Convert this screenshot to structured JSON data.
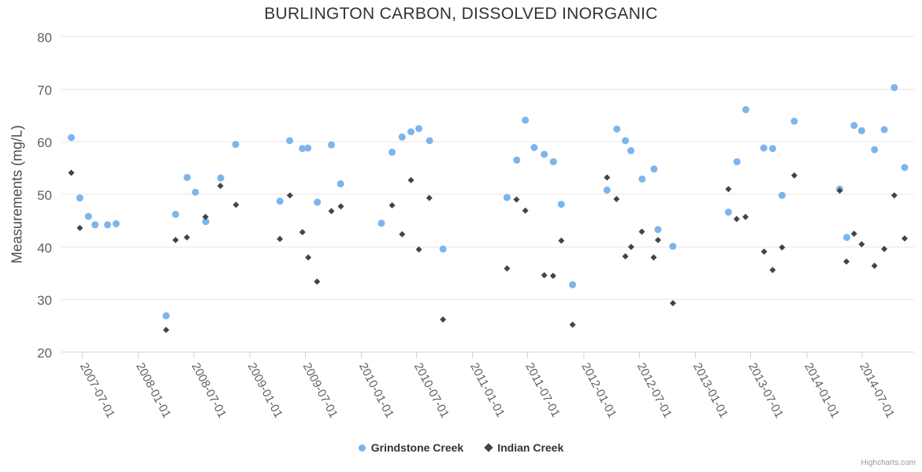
{
  "chart_data": {
    "type": "scatter",
    "title": "BURLINGTON CARBON, DISSOLVED INORGANIC",
    "xlabel": "",
    "ylabel": "Measurements (mg/L)",
    "ylim": [
      20,
      80
    ],
    "yticks": [
      20,
      30,
      40,
      50,
      60,
      70,
      80
    ],
    "xticks": [
      "2007-07-01",
      "2008-01-01",
      "2008-07-01",
      "2009-01-01",
      "2009-07-01",
      "2010-01-01",
      "2010-07-01",
      "2011-01-01",
      "2011-07-01",
      "2012-01-01",
      "2012-07-01",
      "2013-01-01",
      "2013-07-01",
      "2014-01-01",
      "2014-07-01"
    ],
    "x_range": [
      "2007-04-16",
      "2014-12-19"
    ],
    "grid": true,
    "legend_position": "bottom-center",
    "series": [
      {
        "name": "Grindstone Creek",
        "marker": "circle",
        "color": "#7cb5ec",
        "points": [
          [
            "2007-05-26",
            60.8
          ],
          [
            "2007-06-23",
            49.3
          ],
          [
            "2007-07-21",
            45.8
          ],
          [
            "2007-08-12",
            44.2
          ],
          [
            "2007-09-22",
            44.2
          ],
          [
            "2007-10-20",
            44.4
          ],
          [
            "2008-04-01",
            26.9
          ],
          [
            "2008-05-02",
            46.2
          ],
          [
            "2008-06-09",
            53.2
          ],
          [
            "2008-07-06",
            50.4
          ],
          [
            "2008-08-09",
            44.8
          ],
          [
            "2008-09-27",
            53.1
          ],
          [
            "2008-11-15",
            59.5
          ],
          [
            "2009-04-09",
            48.7
          ],
          [
            "2009-05-11",
            60.2
          ],
          [
            "2009-06-22",
            58.7
          ],
          [
            "2009-07-10",
            58.8
          ],
          [
            "2009-08-10",
            48.5
          ],
          [
            "2009-09-25",
            59.4
          ],
          [
            "2009-10-25",
            52.0
          ],
          [
            "2010-03-08",
            44.5
          ],
          [
            "2010-04-12",
            58.0
          ],
          [
            "2010-05-15",
            60.9
          ],
          [
            "2010-06-13",
            61.9
          ],
          [
            "2010-07-09",
            62.5
          ],
          [
            "2010-08-13",
            60.2
          ],
          [
            "2010-09-26",
            39.6
          ],
          [
            "2011-04-24",
            49.4
          ],
          [
            "2011-05-26",
            56.5
          ],
          [
            "2011-06-23",
            64.1
          ],
          [
            "2011-07-22",
            58.9
          ],
          [
            "2011-08-24",
            57.6
          ],
          [
            "2011-09-23",
            56.2
          ],
          [
            "2011-10-19",
            48.1
          ],
          [
            "2011-11-25",
            32.8
          ],
          [
            "2012-03-17",
            50.8
          ],
          [
            "2012-04-18",
            62.4
          ],
          [
            "2012-05-16",
            60.2
          ],
          [
            "2012-06-03",
            58.3
          ],
          [
            "2012-07-10",
            52.9
          ],
          [
            "2012-08-18",
            54.8
          ],
          [
            "2012-08-31",
            43.3
          ],
          [
            "2012-10-19",
            40.1
          ],
          [
            "2013-04-19",
            46.6
          ],
          [
            "2013-05-17",
            56.2
          ],
          [
            "2013-06-15",
            66.1
          ],
          [
            "2013-08-13",
            58.8
          ],
          [
            "2013-09-11",
            58.7
          ],
          [
            "2013-10-12",
            49.8
          ],
          [
            "2013-11-21",
            63.9
          ],
          [
            "2014-04-19",
            51.0
          ],
          [
            "2014-05-12",
            41.8
          ],
          [
            "2014-06-05",
            63.1
          ],
          [
            "2014-06-30",
            62.1
          ],
          [
            "2014-08-11",
            58.5
          ],
          [
            "2014-09-12",
            62.3
          ],
          [
            "2014-10-15",
            70.3
          ],
          [
            "2014-11-18",
            55.1
          ]
        ]
      },
      {
        "name": "Indian Creek",
        "marker": "diamond",
        "color": "#434348",
        "points": [
          [
            "2007-05-26",
            54.1
          ],
          [
            "2007-06-23",
            43.6
          ],
          [
            "2008-04-01",
            24.2
          ],
          [
            "2008-05-02",
            41.3
          ],
          [
            "2008-06-08",
            41.8
          ],
          [
            "2008-08-08",
            45.7
          ],
          [
            "2008-09-26",
            51.6
          ],
          [
            "2008-11-16",
            48.0
          ],
          [
            "2009-04-09",
            41.5
          ],
          [
            "2009-05-12",
            49.8
          ],
          [
            "2009-06-22",
            42.8
          ],
          [
            "2009-07-11",
            38.0
          ],
          [
            "2009-08-09",
            33.4
          ],
          [
            "2009-09-25",
            46.8
          ],
          [
            "2009-10-26",
            47.7
          ],
          [
            "2010-04-12",
            47.9
          ],
          [
            "2010-05-15",
            42.4
          ],
          [
            "2010-06-13",
            52.7
          ],
          [
            "2010-07-09",
            39.5
          ],
          [
            "2010-08-12",
            49.3
          ],
          [
            "2010-09-26",
            26.2
          ],
          [
            "2011-04-24",
            35.9
          ],
          [
            "2011-05-25",
            49.0
          ],
          [
            "2011-06-23",
            46.9
          ],
          [
            "2011-08-24",
            34.6
          ],
          [
            "2011-09-22",
            34.5
          ],
          [
            "2011-10-19",
            41.2
          ],
          [
            "2011-11-25",
            25.2
          ],
          [
            "2012-03-17",
            53.2
          ],
          [
            "2012-04-17",
            49.1
          ],
          [
            "2012-05-16",
            38.2
          ],
          [
            "2012-06-04",
            40.0
          ],
          [
            "2012-07-09",
            42.9
          ],
          [
            "2012-08-17",
            38.0
          ],
          [
            "2012-08-31",
            41.3
          ],
          [
            "2012-10-19",
            29.3
          ],
          [
            "2013-04-19",
            51.0
          ],
          [
            "2013-05-16",
            45.3
          ],
          [
            "2013-06-14",
            45.7
          ],
          [
            "2013-08-14",
            39.1
          ],
          [
            "2013-09-11",
            35.6
          ],
          [
            "2013-10-12",
            39.9
          ],
          [
            "2013-11-21",
            53.6
          ],
          [
            "2014-04-19",
            50.7
          ],
          [
            "2014-05-11",
            37.2
          ],
          [
            "2014-06-05",
            42.5
          ],
          [
            "2014-06-30",
            40.5
          ],
          [
            "2014-08-11",
            36.4
          ],
          [
            "2014-09-12",
            39.6
          ],
          [
            "2014-10-15",
            49.8
          ],
          [
            "2014-11-18",
            41.6
          ]
        ]
      }
    ]
  },
  "styles": {
    "grid_color": "#e6e6e6",
    "axis_line_color": "#ccd6eb",
    "tick_label_color": "#606060",
    "title_color": "#333333",
    "axis_title_color": "#4d4d4d",
    "legend_text_color": "#333333",
    "credit_color": "#999999"
  },
  "credit": {
    "label": "Highcharts.com"
  }
}
